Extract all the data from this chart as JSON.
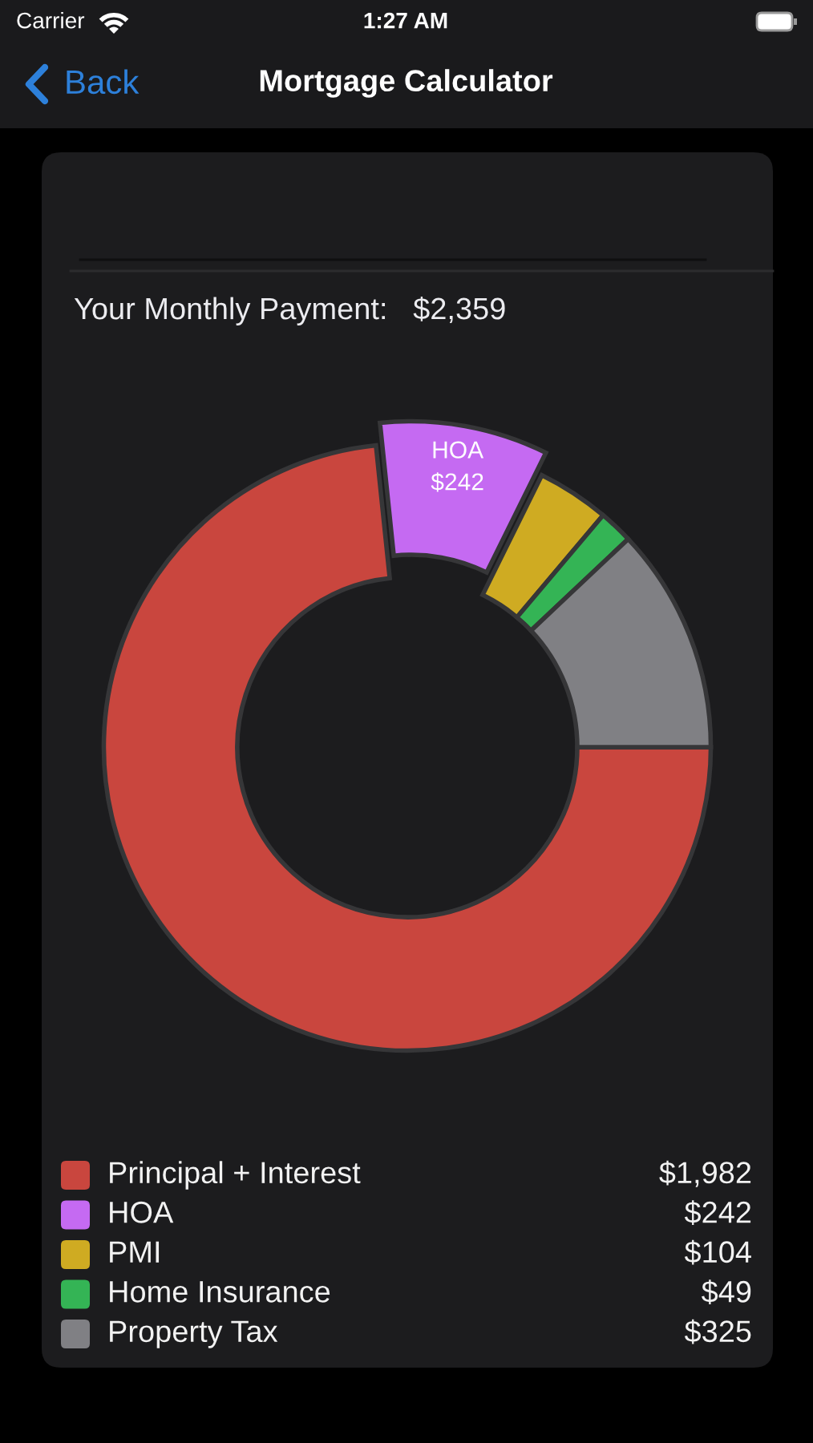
{
  "chart_data": {
    "type": "donut",
    "title": "Mortgage Calculator",
    "subtitle": "Your Monthly Payment:   $2,359",
    "categories": [
      "Principal + Interest",
      "HOA",
      "PMI",
      "Home Insurance",
      "Property Tax"
    ],
    "values": [
      1982,
      242,
      104,
      49,
      325
    ],
    "colors": [
      "#c9463e",
      "#c56af2",
      "#cfab22",
      "#34b455",
      "#808084"
    ],
    "value_labels": [
      "$1,982",
      "$242",
      "$104",
      "$49",
      "$325"
    ],
    "legend": "bottom",
    "annotations": [
      "Carrier",
      "1:27 AM",
      "Back",
      {
        "text": "HOA\n$242",
        "x": "HOA"
      }
    ]
  }
}
